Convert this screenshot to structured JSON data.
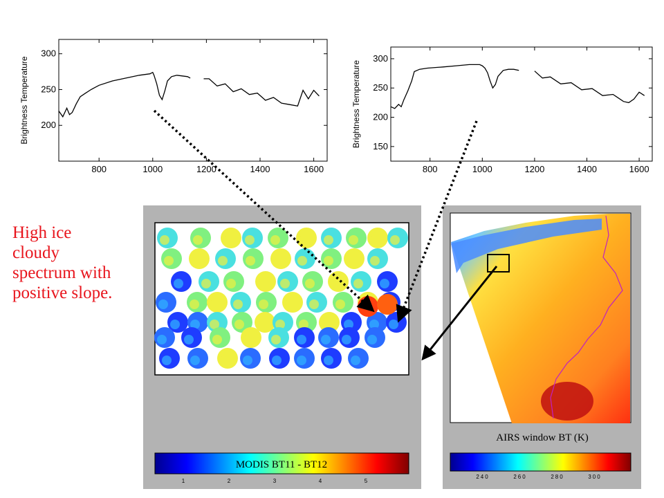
{
  "caption": {
    "lines": [
      "High ice",
      "cloudy",
      "spectrum with",
      "positive slope."
    ],
    "color": "#e8141c"
  },
  "chart_data": [
    {
      "type": "line",
      "panel": "left-spectrum",
      "title": "",
      "xlabel": "",
      "ylabel": "Brightness Temperature",
      "xlim": [
        650,
        1650
      ],
      "ylim": [
        150,
        320
      ],
      "xticks": [
        800,
        1000,
        1200,
        1400,
        1600
      ],
      "yticks": [
        200,
        250,
        300
      ],
      "series": [
        {
          "x": [
            650,
            665,
            680,
            690,
            700,
            715,
            730,
            750,
            770,
            800,
            850,
            900,
            950,
            990,
            1000,
            1005,
            1015,
            1025,
            1035,
            1045,
            1055,
            1070,
            1090,
            1110,
            1130,
            1140,
            1170,
            1190,
            1210,
            1240,
            1270,
            1300,
            1330,
            1360,
            1390,
            1420,
            1450,
            1480,
            1510,
            1540,
            1560,
            1580,
            1600,
            1620
          ],
          "y": [
            220,
            212,
            224,
            215,
            218,
            230,
            240,
            245,
            250,
            256,
            262,
            266,
            270,
            272,
            274,
            270,
            258,
            242,
            236,
            248,
            262,
            268,
            270,
            269,
            268,
            266,
            null,
            268,
            262,
            258,
            255,
            250,
            248,
            246,
            242,
            238,
            236,
            234,
            226,
            230,
            246,
            240,
            246,
            244
          ]
        }
      ]
    },
    {
      "type": "line",
      "panel": "right-spectrum",
      "title": "",
      "xlabel": "",
      "ylabel": "Brightness Temperature",
      "xlim": [
        650,
        1650
      ],
      "ylim": [
        125,
        320
      ],
      "xticks": [
        800,
        1000,
        1200,
        1400,
        1600
      ],
      "yticks": [
        150,
        200,
        250,
        300
      ],
      "series": [
        {
          "x": [
            650,
            665,
            680,
            690,
            700,
            715,
            730,
            740,
            760,
            790,
            850,
            900,
            950,
            990,
            1000,
            1010,
            1020,
            1030,
            1040,
            1050,
            1060,
            1080,
            1100,
            1120,
            1140,
            1180,
            1200,
            1230,
            1260,
            1300,
            1340,
            1380,
            1420,
            1460,
            1500,
            1540,
            1560,
            1580,
            1600,
            1620
          ],
          "y": [
            218,
            215,
            222,
            218,
            230,
            245,
            262,
            278,
            282,
            284,
            286,
            288,
            290,
            290,
            288,
            284,
            276,
            262,
            250,
            256,
            270,
            280,
            282,
            282,
            280,
            null,
            276,
            270,
            266,
            260,
            256,
            250,
            246,
            240,
            236,
            230,
            222,
            234,
            240,
            240
          ]
        }
      ]
    }
  ],
  "modis": {
    "colorbar_label": "MODIS BT11 - BT12",
    "ticks": [
      "1",
      "2",
      "3",
      "4",
      "5"
    ],
    "colormap": [
      "#00008f",
      "#0000ff",
      "#0080ff",
      "#00ffff",
      "#80ff80",
      "#ffff00",
      "#ff8000",
      "#ff0000",
      "#800000"
    ]
  },
  "airs": {
    "label": "AIRS window BT (K)",
    "ticks": [
      "240",
      "260",
      "280",
      "300"
    ],
    "colormap": [
      "#00008f",
      "#0000ff",
      "#0080ff",
      "#00ffff",
      "#80ff80",
      "#ffff00",
      "#ff8000",
      "#ff0000",
      "#800000"
    ]
  },
  "colors": {
    "panel_gray": "#b3b3b3",
    "annotation_line": "#000000",
    "coastline": "#c020c0"
  }
}
